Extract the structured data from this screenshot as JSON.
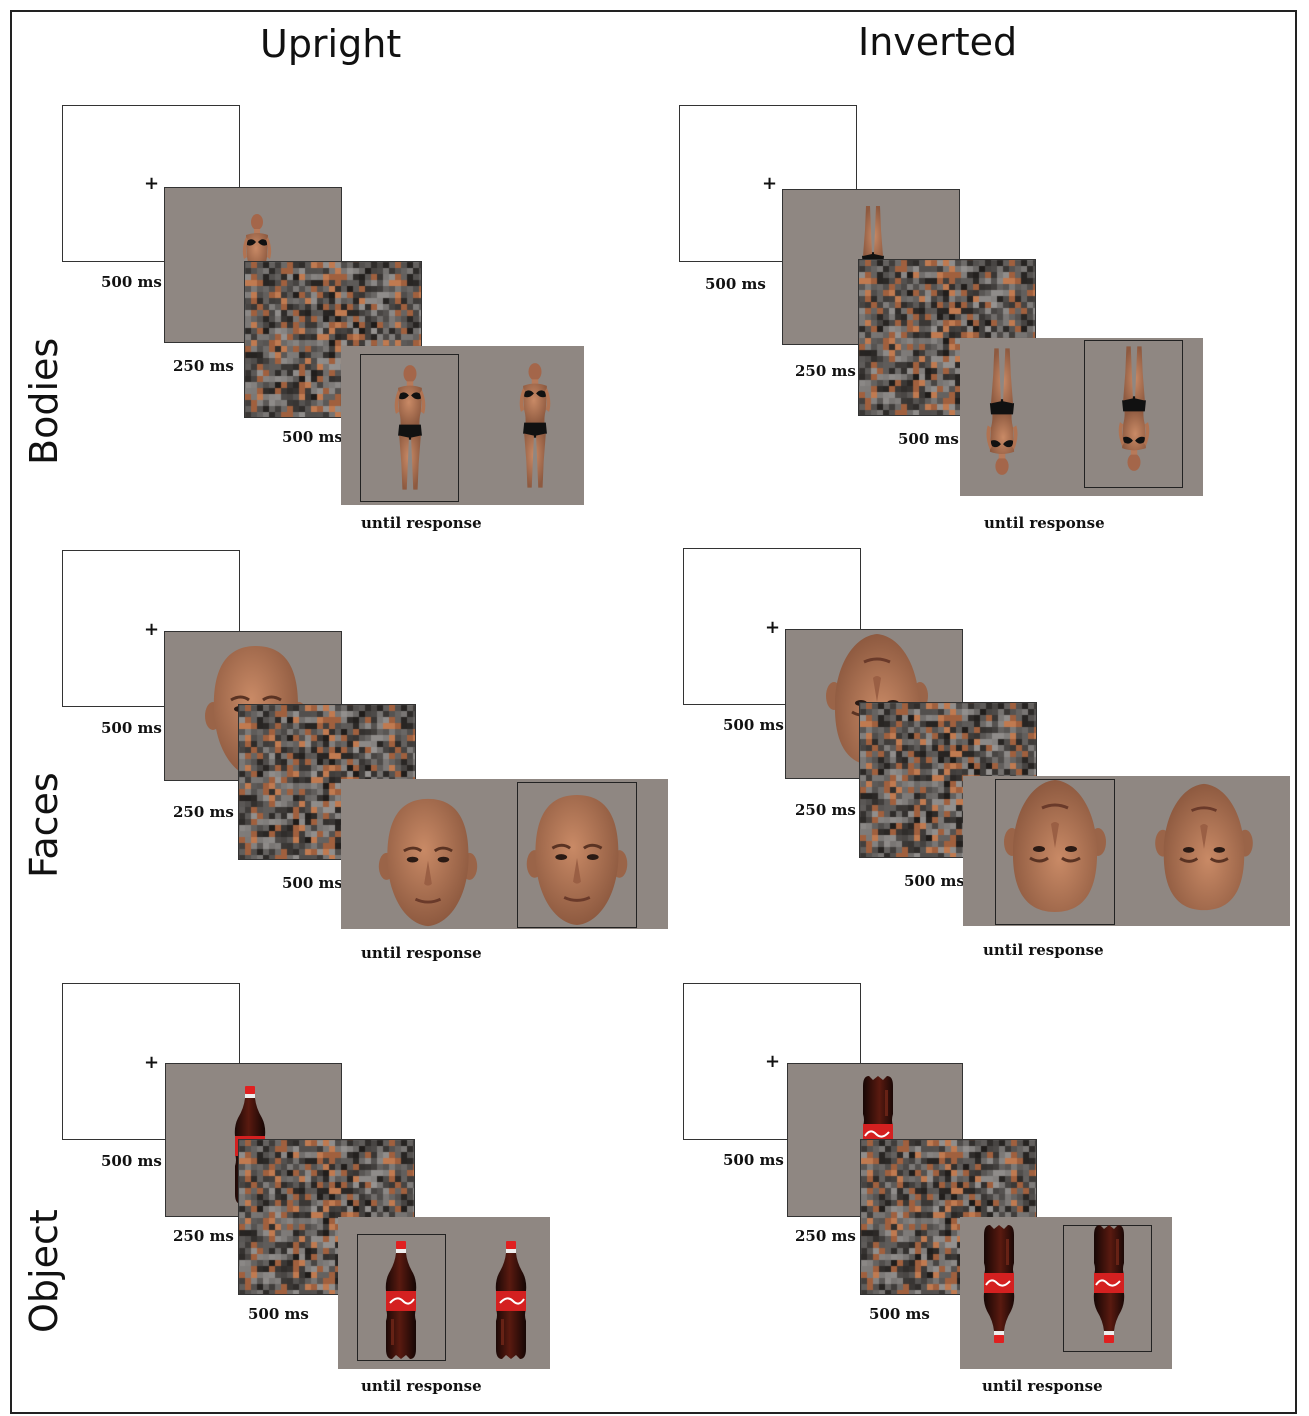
{
  "columns": {
    "upright": "Upright",
    "inverted": "Inverted"
  },
  "rows": {
    "bodies": "Bodies",
    "faces": "Faces",
    "object": "Object"
  },
  "timings": {
    "fixation": "500 ms",
    "stimulus": "250 ms",
    "mask": "500 ms",
    "response": "until response"
  },
  "fixation_symbol": "+",
  "colors": {
    "panel": "#8f8782",
    "mask_dark": "#3a3735",
    "mask_light": "#8a8580",
    "skin": "#b77a5a",
    "cola_red": "#d42020"
  },
  "icons": [
    "body-figure-icon",
    "face-icon",
    "cola-bottle-icon"
  ]
}
